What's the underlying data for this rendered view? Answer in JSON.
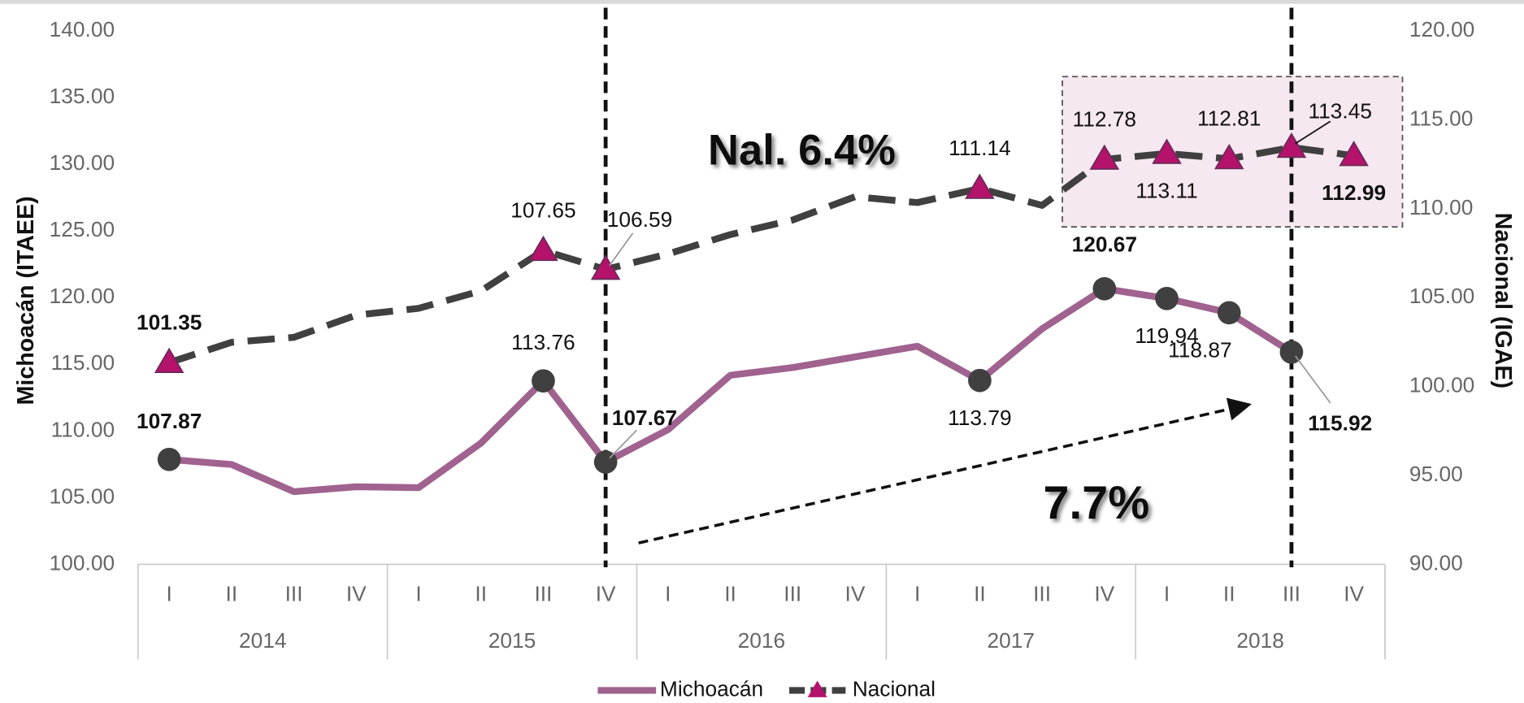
{
  "chart_data": {
    "type": "line",
    "categories": [
      "I",
      "II",
      "III",
      "IV",
      "I",
      "II",
      "III",
      "IV",
      "I",
      "II",
      "III",
      "IV",
      "I",
      "II",
      "III",
      "IV",
      "I",
      "II",
      "III",
      "IV"
    ],
    "years": [
      "2014",
      "2015",
      "2016",
      "2017",
      "2018"
    ],
    "ylabel": "Michoacán (ITAEE)",
    "y2label": "Nacional (IGAE)",
    "ylim": [
      100,
      140
    ],
    "yticks": [
      {
        "value": 100,
        "label": "100.00"
      },
      {
        "value": 105,
        "label": "105.00"
      },
      {
        "value": 110,
        "label": "110.00"
      },
      {
        "value": 115,
        "label": "115.00"
      },
      {
        "value": 120,
        "label": "120.00"
      },
      {
        "value": 125,
        "label": "125.00"
      },
      {
        "value": 130,
        "label": "130.00"
      },
      {
        "value": 135,
        "label": "135.00"
      },
      {
        "value": 140,
        "label": "140.00"
      }
    ],
    "y2lim": [
      90,
      120
    ],
    "y2ticks": [
      {
        "value": 90,
        "label": "90.00"
      },
      {
        "value": 95,
        "label": "95.00"
      },
      {
        "value": 100,
        "label": "100.00"
      },
      {
        "value": 105,
        "label": "105.00"
      },
      {
        "value": 110,
        "label": "110.00"
      },
      {
        "value": 115,
        "label": "115.00"
      },
      {
        "value": 120,
        "label": "120.00"
      }
    ],
    "series": [
      {
        "name": "Michoacán",
        "color": "#a0628f",
        "marker_color": "#404040",
        "values": [
          107.87,
          107.49,
          105.45,
          105.82,
          105.75,
          109.09,
          113.76,
          107.67,
          110.1,
          114.18,
          114.76,
          115.56,
          116.36,
          113.79,
          117.67,
          120.67,
          119.94,
          118.87,
          115.92,
          null
        ],
        "value_labels": [
          "107.87",
          null,
          null,
          null,
          null,
          null,
          "113.76",
          "107.67",
          null,
          null,
          null,
          null,
          null,
          "113.79",
          null,
          "120.67",
          "119.94",
          "118.87",
          "115.92",
          null
        ],
        "bold_labels": [
          0,
          7,
          15,
          18
        ]
      },
      {
        "name": "Nacional",
        "color": "#404040",
        "marker_color": "#b5126b",
        "axis": "y2",
        "values": [
          101.35,
          102.49,
          102.77,
          104.02,
          104.4,
          105.38,
          107.65,
          106.59,
          107.46,
          108.55,
          109.37,
          110.68,
          110.35,
          111.14,
          110.19,
          112.78,
          113.11,
          112.81,
          113.45,
          112.99
        ],
        "value_labels": [
          "101.35",
          null,
          null,
          null,
          null,
          null,
          "107.65",
          "106.59",
          null,
          null,
          null,
          null,
          null,
          "111.14",
          null,
          "112.78",
          "113.11",
          "112.81",
          "113.45",
          "112.99"
        ],
        "bold_labels": [
          0,
          19
        ]
      }
    ],
    "annotations": [
      "Nal. 6.4%",
      "7.7%"
    ],
    "legend": "bottom"
  }
}
